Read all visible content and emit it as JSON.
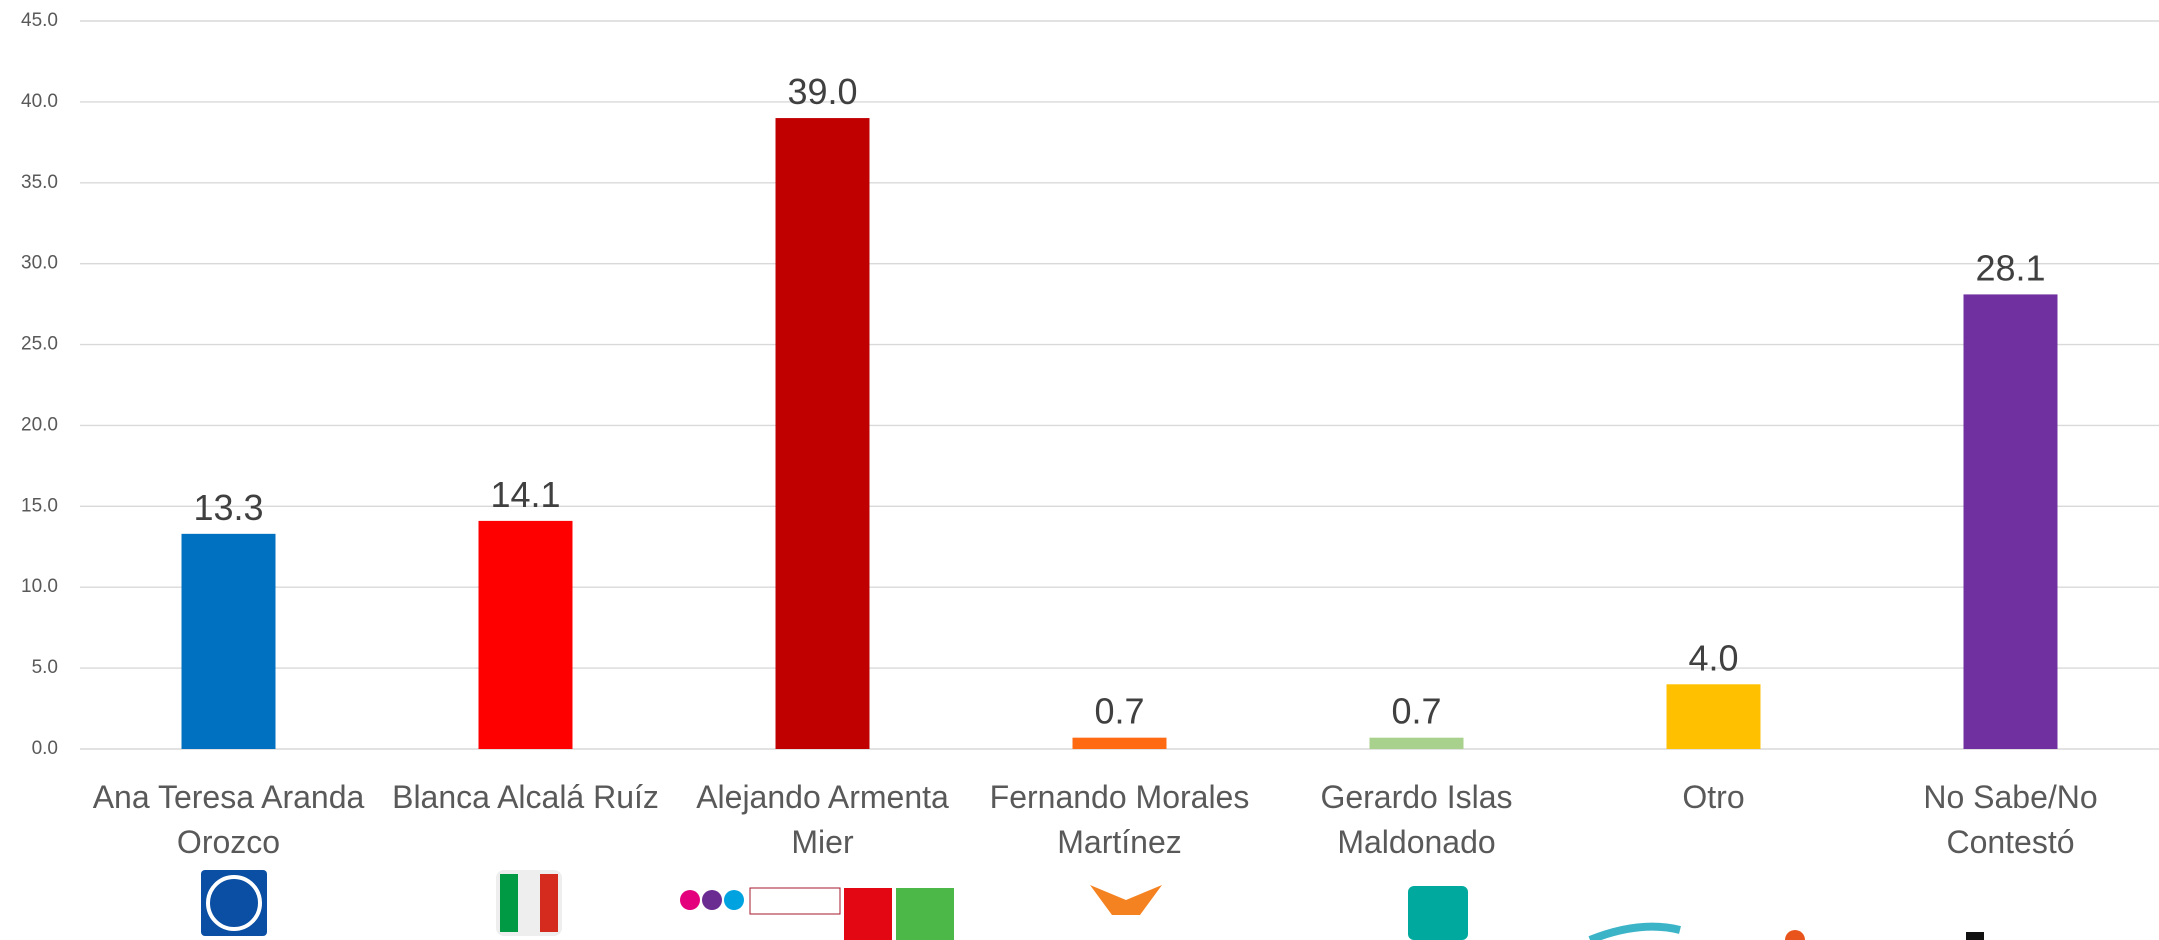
{
  "chart_data": {
    "type": "bar",
    "categories": [
      "Ana Teresa Aranda Orozco",
      "Blanca Alcalá Ruíz",
      "Alejando Armenta Mier",
      "Fernando Morales Martínez",
      "Gerardo Islas Maldonado",
      "Otro",
      "No Sabe/No Contestó"
    ],
    "values": [
      13.3,
      14.1,
      39.0,
      0.7,
      0.7,
      4.0,
      28.1
    ],
    "value_labels": [
      "13.3",
      "14.1",
      "39.0",
      "0.7",
      "0.7",
      "4.0",
      "28.1"
    ],
    "colors": [
      "#0070c0",
      "#ff0000",
      "#c00000",
      "#ff6a13",
      "#a9d18e",
      "#ffc000",
      "#7030a0"
    ],
    "ylim": [
      0,
      45
    ],
    "yticks": [
      {
        "value": 0,
        "label": "0.0"
      },
      {
        "value": 5,
        "label": "5.0"
      },
      {
        "value": 10,
        "label": "10.0"
      },
      {
        "value": 15,
        "label": "15.0"
      },
      {
        "value": 20,
        "label": "20.0"
      },
      {
        "value": 25,
        "label": "25.0"
      },
      {
        "value": 30,
        "label": "30.0"
      },
      {
        "value": 35,
        "label": "35.0"
      },
      {
        "value": 40,
        "label": "40.0"
      },
      {
        "value": 45,
        "label": "45.0"
      }
    ],
    "grid": true
  }
}
